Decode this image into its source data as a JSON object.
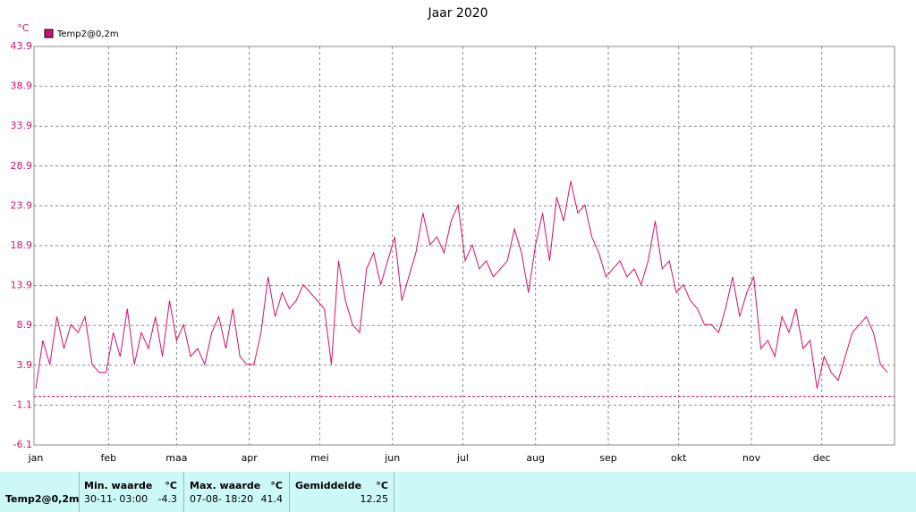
{
  "chart_data": {
    "type": "line",
    "title": "Jaar 2020",
    "y_unit": "°C",
    "x": [
      0,
      3,
      6,
      9,
      12,
      15,
      18,
      21,
      24,
      27,
      30,
      33,
      36,
      39,
      42,
      45,
      48,
      51,
      54,
      57,
      60,
      63,
      66,
      69,
      72,
      75,
      78,
      81,
      84,
      87,
      90,
      93,
      96,
      99,
      102,
      105,
      108,
      111,
      114,
      117,
      120,
      123,
      126,
      129,
      132,
      135,
      138,
      141,
      144,
      147,
      150,
      153,
      156,
      159,
      162,
      165,
      168,
      171,
      174,
      177,
      180,
      183,
      186,
      189,
      192,
      195,
      198,
      201,
      204,
      207,
      210,
      213,
      216,
      219,
      222,
      225,
      228,
      231,
      234,
      237,
      240,
      243,
      246,
      249,
      252,
      255,
      258,
      261,
      264,
      267,
      270,
      273,
      276,
      279,
      282,
      285,
      288,
      291,
      294,
      297,
      300,
      303,
      306,
      309,
      312,
      315,
      318,
      321,
      324,
      327,
      330,
      333,
      336,
      339,
      342,
      345,
      348,
      351,
      354,
      357,
      360,
      363
    ],
    "series": [
      {
        "name": "Temp2@0,2m",
        "color": "#d0106e",
        "values": [
          1,
          7,
          4,
          10,
          6,
          9,
          8,
          10,
          4,
          3,
          3,
          8,
          5,
          11,
          4,
          8,
          6,
          10,
          5,
          12,
          7,
          9,
          5,
          6,
          4,
          8,
          10,
          6,
          11,
          5,
          4,
          4,
          8,
          15,
          10,
          13,
          11,
          12,
          14,
          13,
          12,
          11,
          4,
          17,
          12,
          9,
          8,
          16,
          18,
          14,
          17,
          20,
          12,
          15,
          18,
          23,
          19,
          20,
          18,
          22,
          24,
          17,
          19,
          16,
          17,
          15,
          16,
          17,
          21,
          18,
          13,
          19,
          23,
          17,
          25,
          22,
          27,
          23,
          24,
          20,
          18,
          15,
          16,
          17,
          15,
          16,
          14,
          17,
          22,
          16,
          17,
          13,
          14,
          12,
          11,
          9,
          9,
          8,
          11,
          15,
          10,
          13,
          15,
          6,
          7,
          5,
          10,
          8,
          11,
          6,
          7,
          1,
          5,
          3,
          2,
          5,
          8,
          9,
          10,
          8,
          4,
          3
        ]
      }
    ],
    "xlim": [
      0,
      366
    ],
    "xticks": [
      {
        "value": 0,
        "label": "jan"
      },
      {
        "value": 31,
        "label": "feb"
      },
      {
        "value": 60,
        "label": "maa"
      },
      {
        "value": 91,
        "label": "apr"
      },
      {
        "value": 121,
        "label": "mei"
      },
      {
        "value": 152,
        "label": "jun"
      },
      {
        "value": 182,
        "label": "jul"
      },
      {
        "value": 213,
        "label": "aug"
      },
      {
        "value": 244,
        "label": "sep"
      },
      {
        "value": 274,
        "label": "okt"
      },
      {
        "value": 305,
        "label": "nov"
      },
      {
        "value": 335,
        "label": "dec"
      }
    ],
    "ylim": [
      -6.1,
      43.9
    ],
    "yticks": [
      -6.1,
      -1.1,
      3.9,
      8.9,
      13.9,
      18.9,
      23.9,
      28.9,
      33.9,
      38.9,
      43.9
    ],
    "reference_line": 0,
    "reference_color": "#d0106e",
    "grid": true
  },
  "table": {
    "headers": [
      "Min. waarde",
      "°C",
      "Max. waarde",
      "°C",
      "Gemiddelde",
      "°C"
    ],
    "rows": [
      [
        "Temp2@0,2m",
        "30-11- 03:00",
        "-4.3",
        "07-08- 18:20",
        "41.4",
        "12.25"
      ]
    ]
  }
}
